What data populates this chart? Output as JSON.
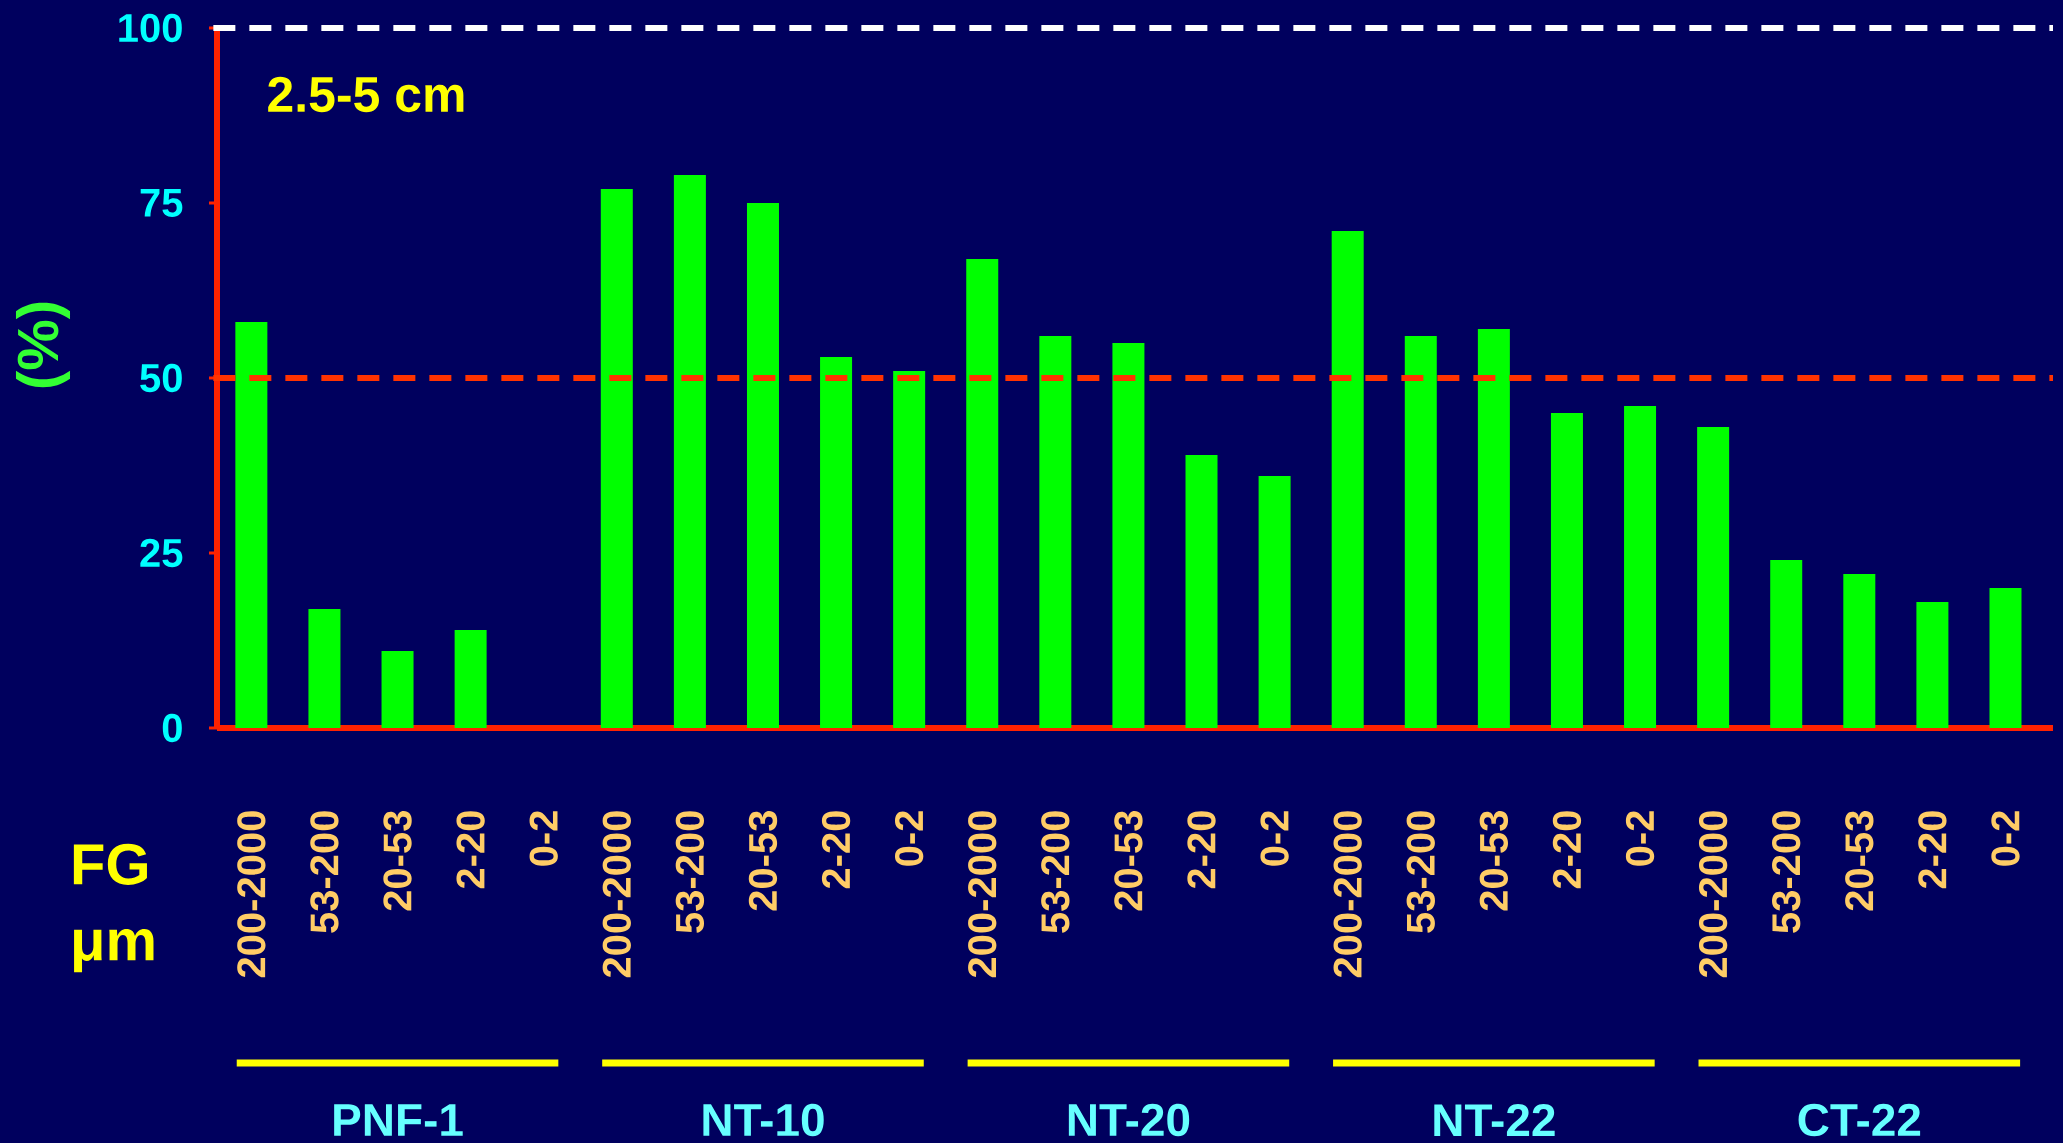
{
  "chart_data": {
    "type": "bar",
    "xlabel": "FG μm",
    "ylabel": "(%)",
    "categories": [
      "200-2000",
      "53-200",
      "20-53",
      "2-20",
      "0-2",
      "200-2000",
      "53-200",
      "20-53",
      "2-20",
      "0-2",
      "200-2000",
      "53-200",
      "20-53",
      "2-20",
      "0-2",
      "200-2000",
      "53-200",
      "20-53",
      "2-20",
      "0-2",
      "200-2000",
      "53-200",
      "20-53",
      "2-20",
      "0-2"
    ],
    "values": [
      58,
      17,
      11,
      14,
      null,
      77,
      79,
      75,
      53,
      51,
      67,
      56,
      55,
      39,
      36,
      71,
      56,
      57,
      45,
      46,
      43,
      24,
      22,
      18,
      20
    ],
    "color": "#00ff00",
    "ylim": [
      0,
      100
    ],
    "yticks": [
      0,
      25,
      50,
      75,
      100
    ],
    "ref_lines": [
      {
        "axis": "y",
        "value": 100,
        "color": "#ffffff",
        "line_style": "dashed"
      },
      {
        "axis": "y",
        "value": 50,
        "color": "#ff3300",
        "line_style": "dashed"
      }
    ],
    "annotations": [
      "2.5-5 cm",
      "PNF-1",
      "NT-10",
      "NT-20",
      "NT-22",
      "CT-22"
    ]
  }
}
